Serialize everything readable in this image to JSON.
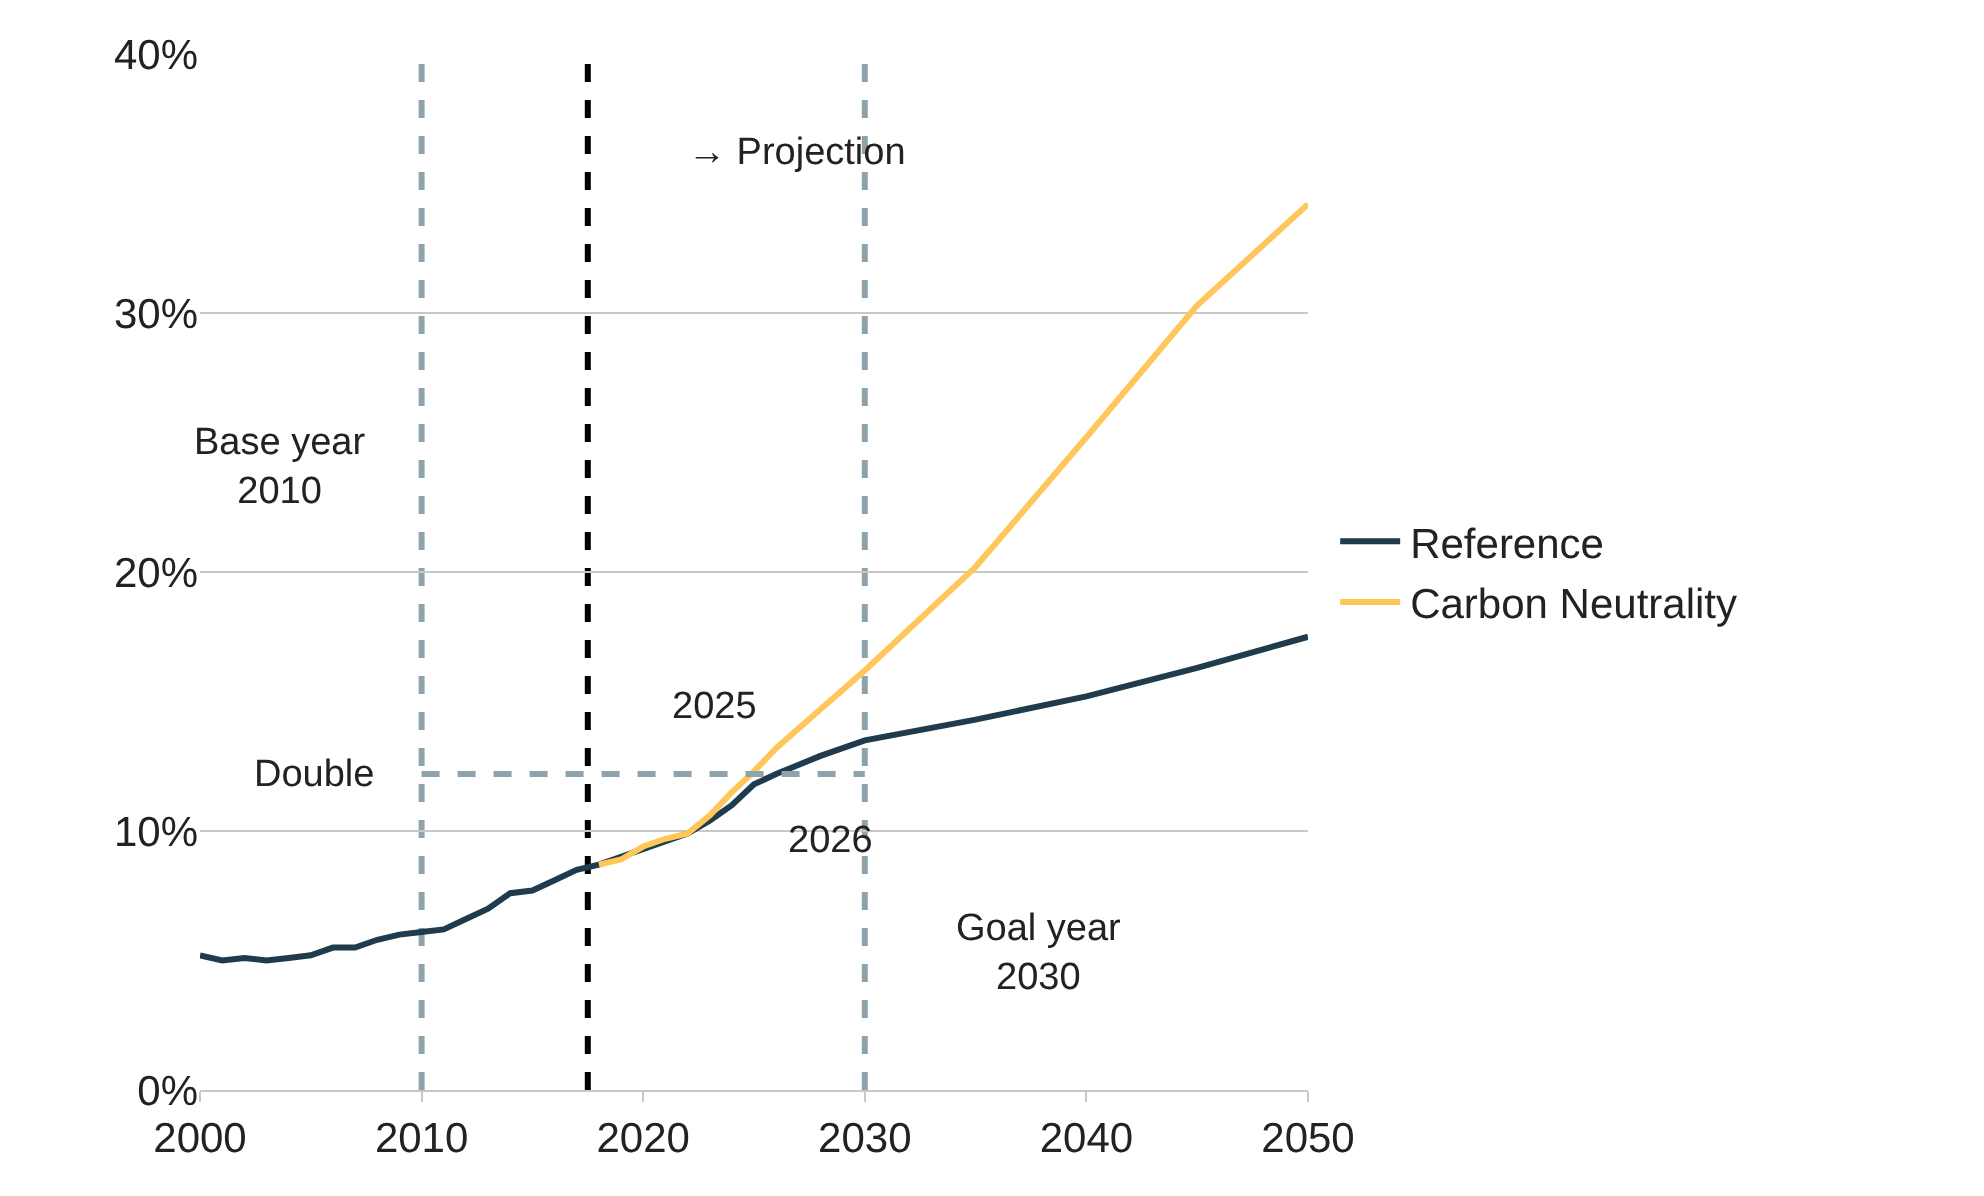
{
  "chart_data": {
    "type": "line",
    "xlim": [
      2000,
      2050
    ],
    "xticks": [
      2000,
      2010,
      2020,
      2030,
      2040,
      2050
    ],
    "ylim": [
      0,
      40
    ],
    "yticks": [
      {
        "value": 0,
        "label": "0%"
      },
      {
        "value": 10,
        "label": "10%"
      },
      {
        "value": 20,
        "label": "20%"
      },
      {
        "value": 30,
        "label": "30%"
      },
      {
        "value": 40,
        "label": "40%"
      }
    ],
    "grid": "y",
    "legend": "right",
    "marker": "none",
    "line_style": "solid",
    "series": [
      {
        "name": "Reference",
        "color": "#1f3b4d",
        "x": [
          2000,
          2001,
          2002,
          2003,
          2004,
          2005,
          2006,
          2007,
          2008,
          2009,
          2010,
          2011,
          2012,
          2013,
          2014,
          2015,
          2016,
          2017,
          2018,
          2019,
          2020,
          2021,
          2022,
          2023,
          2024,
          2025,
          2026,
          2028,
          2030,
          2035,
          2040,
          2045,
          2050
        ],
        "values": [
          5.2,
          5.0,
          5.1,
          5.0,
          5.1,
          5.2,
          5.5,
          5.5,
          5.8,
          6.0,
          6.1,
          6.2,
          6.6,
          7.0,
          7.6,
          7.7,
          8.1,
          8.5,
          8.7,
          null,
          null,
          null,
          9.9,
          10.4,
          11.0,
          11.8,
          12.2,
          12.9,
          13.5,
          14.3,
          15.2,
          16.3,
          17.5
        ]
      },
      {
        "name": "Carbon Neutrality",
        "color": "#ffc65a",
        "x": [
          2018,
          2019,
          2020,
          2021,
          2022,
          2023,
          2024,
          2025,
          2026,
          2028,
          2030,
          2035,
          2040,
          2045,
          2050
        ],
        "values": [
          8.7,
          8.9,
          9.4,
          9.7,
          9.9,
          10.6,
          11.5,
          12.3,
          13.2,
          14.7,
          16.2,
          20.2,
          25.2,
          30.3,
          34.2
        ]
      },
      {
        "color": "#8fa3ad",
        "x": [
          2010,
          2030
        ],
        "values": [
          12.2,
          12.2
        ],
        "line_style": "dashed"
      }
    ],
    "ref_lines": [
      {
        "axis": "x",
        "value": 2010,
        "color": "#8fa3ad",
        "line_style": "dashed"
      },
      {
        "axis": "x",
        "value": 2017.5,
        "color": "#000000",
        "line_style": "dashed"
      },
      {
        "axis": "x",
        "value": 2030,
        "color": "#8fa3ad",
        "line_style": "dashed"
      }
    ],
    "annotations": [
      "→ Projection",
      "Base year\n2010",
      "Double",
      "2025",
      "2026",
      "Goal year\n2030"
    ]
  }
}
